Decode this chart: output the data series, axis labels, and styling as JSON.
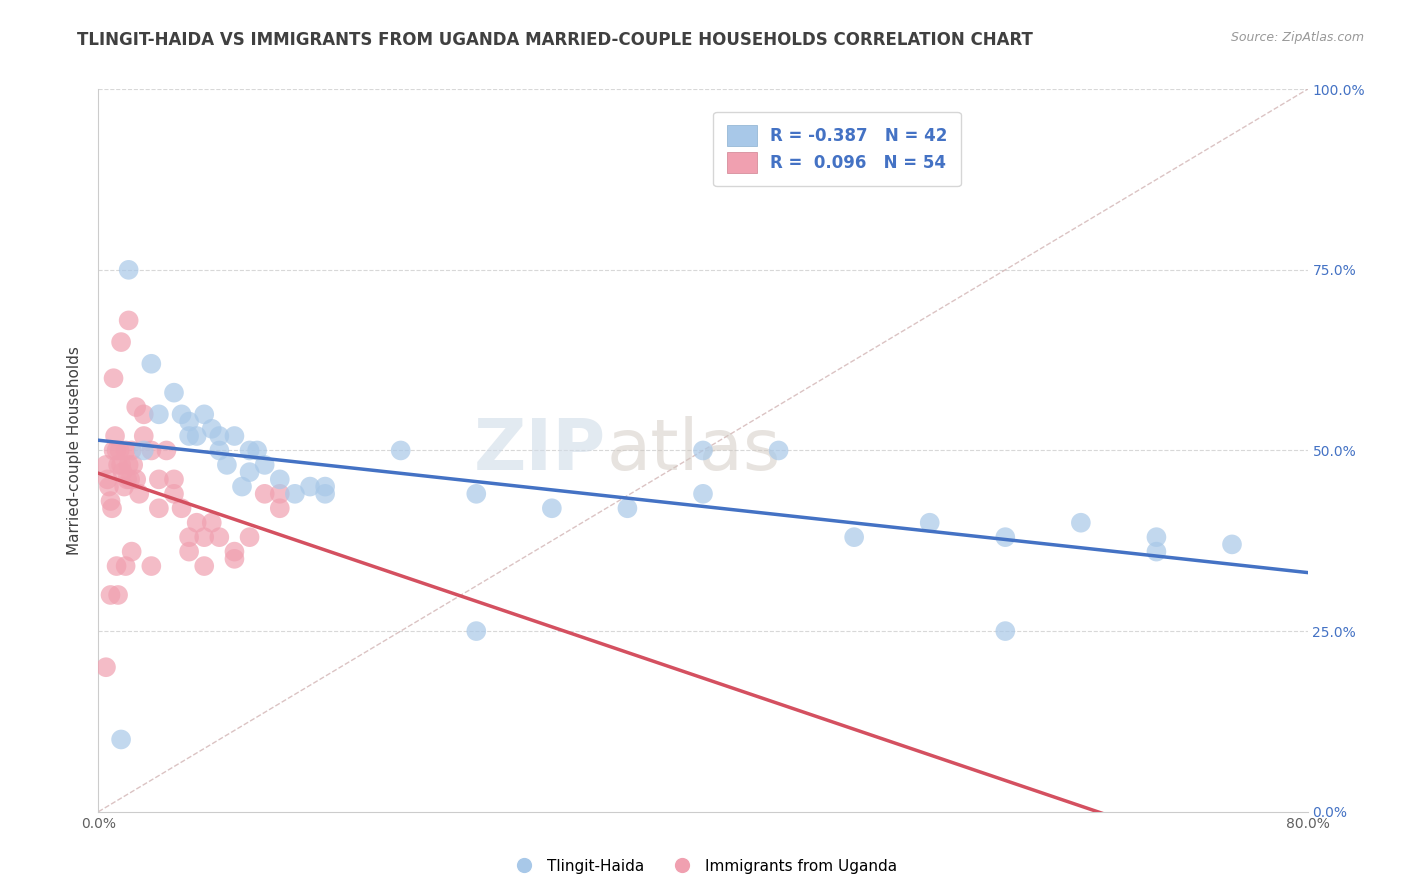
{
  "title": "TLINGIT-HAIDA VS IMMIGRANTS FROM UGANDA MARRIED-COUPLE HOUSEHOLDS CORRELATION CHART",
  "source": "Source: ZipAtlas.com",
  "ylabel_left": "Married-couple Households",
  "legend_blue_r": "R = -0.387",
  "legend_blue_n": "N = 42",
  "legend_pink_r": "R =  0.096",
  "legend_pink_n": "N = 54",
  "blue_color": "#a8c8e8",
  "pink_color": "#f0a0b0",
  "blue_line_color": "#4472c4",
  "pink_line_color": "#d45060",
  "legend_text_color": "#4472c4",
  "title_color": "#404040",
  "source_color": "#999999",
  "background_color": "#ffffff",
  "grid_color": "#d8d8d8",
  "watermark_zip": "ZIP",
  "watermark_atlas": "atlas",
  "blue_scatter_x": [
    1.5,
    2.0,
    3.5,
    4.0,
    5.0,
    5.5,
    6.0,
    6.5,
    7.0,
    7.5,
    8.0,
    8.5,
    9.0,
    9.5,
    10.0,
    10.5,
    11.0,
    12.0,
    13.0,
    14.0,
    15.0,
    20.0,
    25.0,
    30.0,
    35.0,
    40.0,
    45.0,
    50.0,
    55.0,
    60.0,
    65.0,
    70.0,
    3.0,
    6.0,
    8.0,
    10.0,
    15.0,
    25.0,
    40.0,
    60.0,
    70.0,
    75.0
  ],
  "blue_scatter_y": [
    10.0,
    75.0,
    62.0,
    55.0,
    58.0,
    55.0,
    54.0,
    52.0,
    55.0,
    53.0,
    50.0,
    48.0,
    52.0,
    45.0,
    50.0,
    50.0,
    48.0,
    46.0,
    44.0,
    45.0,
    44.0,
    50.0,
    44.0,
    42.0,
    42.0,
    44.0,
    50.0,
    38.0,
    40.0,
    38.0,
    40.0,
    36.0,
    50.0,
    52.0,
    52.0,
    47.0,
    45.0,
    25.0,
    50.0,
    25.0,
    38.0,
    37.0
  ],
  "pink_scatter_x": [
    0.5,
    0.6,
    0.7,
    0.8,
    0.9,
    1.0,
    1.1,
    1.2,
    1.3,
    1.4,
    1.5,
    1.6,
    1.7,
    1.8,
    1.9,
    2.0,
    2.1,
    2.2,
    2.3,
    2.5,
    2.7,
    3.0,
    3.5,
    4.0,
    4.5,
    5.0,
    5.5,
    6.0,
    6.5,
    7.0,
    7.5,
    8.0,
    9.0,
    10.0,
    11.0,
    12.0,
    1.0,
    1.5,
    2.0,
    2.5,
    3.0,
    4.0,
    5.0,
    1.2,
    1.8,
    0.8,
    1.3,
    2.2,
    3.5,
    6.0,
    7.0,
    9.0,
    12.0,
    0.5
  ],
  "pink_scatter_y": [
    48.0,
    46.0,
    45.0,
    43.0,
    42.0,
    50.0,
    52.0,
    50.0,
    48.0,
    50.0,
    48.0,
    47.0,
    45.0,
    50.0,
    46.0,
    48.0,
    46.0,
    50.0,
    48.0,
    46.0,
    44.0,
    52.0,
    50.0,
    46.0,
    50.0,
    46.0,
    42.0,
    38.0,
    40.0,
    38.0,
    40.0,
    38.0,
    36.0,
    38.0,
    44.0,
    44.0,
    60.0,
    65.0,
    68.0,
    56.0,
    55.0,
    42.0,
    44.0,
    34.0,
    34.0,
    30.0,
    30.0,
    36.0,
    34.0,
    36.0,
    34.0,
    35.0,
    42.0,
    20.0
  ],
  "xmin": 0.0,
  "xmax": 80.0,
  "ymin": 0.0,
  "ymax": 100.0,
  "yticks": [
    0,
    25,
    50,
    75,
    100
  ],
  "ytick_labels": [
    "0.0%",
    "25.0%",
    "50.0%",
    "75.0%",
    "100.0%"
  ]
}
